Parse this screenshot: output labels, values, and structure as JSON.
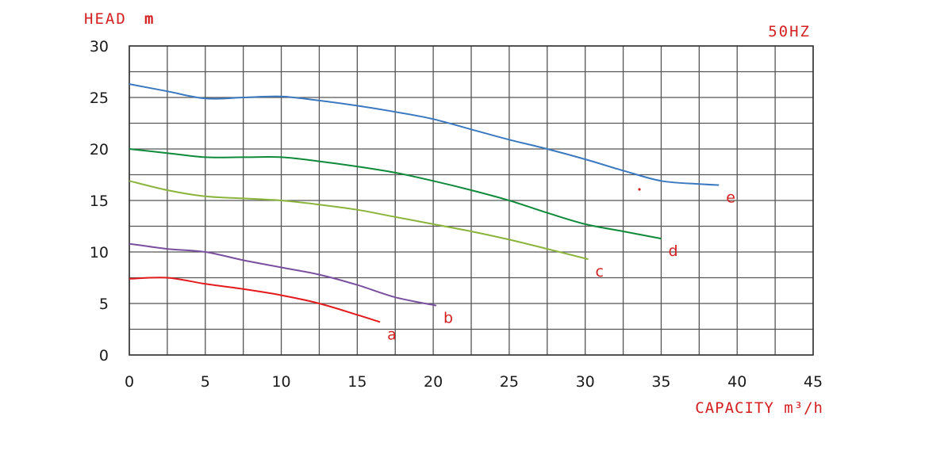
{
  "chart_data": {
    "type": "line",
    "ylabel": "HEAD",
    "ylabel_unit": "m",
    "xlabel": "CAPACITY m³/h",
    "frequency_label": "50HZ",
    "xlim": [
      0,
      45
    ],
    "ylim": [
      0,
      30
    ],
    "x_ticks": [
      "0",
      "5",
      "10",
      "15",
      "20",
      "25",
      "30",
      "35",
      "40",
      "45"
    ],
    "y_ticks": [
      "0",
      "5",
      "10",
      "15",
      "20",
      "25",
      "30"
    ],
    "grid": true,
    "x_grid_step": 2.5,
    "y_grid_step": 2.5,
    "series": [
      {
        "name": "a",
        "color": "#e31a1c",
        "x": [
          0,
          2.5,
          5,
          7.5,
          10,
          12.5,
          15,
          16.5
        ],
        "y": [
          7.4,
          7.5,
          6.9,
          6.4,
          5.8,
          5.0,
          3.9,
          3.2
        ]
      },
      {
        "name": "b",
        "color": "#7a4fa0",
        "x": [
          0,
          2.5,
          5,
          7.5,
          10,
          12.5,
          15,
          17.5,
          20.2
        ],
        "y": [
          10.8,
          10.3,
          10.0,
          9.2,
          8.5,
          7.8,
          6.8,
          5.6,
          4.8
        ]
      },
      {
        "name": "c",
        "color": "#8ab43c",
        "x": [
          0,
          2.5,
          5,
          7.5,
          10,
          12.5,
          15,
          17.5,
          20,
          22.5,
          25,
          27.5,
          30.2
        ],
        "y": [
          16.9,
          16.0,
          15.4,
          15.2,
          15.0,
          14.6,
          14.1,
          13.4,
          12.7,
          12.0,
          11.2,
          10.3,
          9.3
        ]
      },
      {
        "name": "d",
        "color": "#0f8a3a",
        "x": [
          0,
          2.5,
          5,
          7.5,
          10,
          12.5,
          15,
          17.5,
          20,
          22.5,
          25,
          27.5,
          30,
          32.5,
          35
        ],
        "y": [
          20.0,
          19.6,
          19.2,
          19.2,
          19.2,
          18.8,
          18.3,
          17.7,
          16.9,
          16.0,
          15.0,
          13.8,
          12.7,
          12.0,
          11.3
        ]
      },
      {
        "name": "e",
        "color": "#3a78bf",
        "x": [
          0,
          2.5,
          5,
          7.5,
          10,
          12.5,
          15,
          17.5,
          20,
          22.5,
          25,
          27.5,
          30,
          32.5,
          35,
          37.5,
          38.8
        ],
        "y": [
          26.3,
          25.6,
          24.9,
          25.0,
          25.1,
          24.7,
          24.2,
          23.6,
          22.9,
          21.9,
          20.9,
          20.0,
          19.0,
          17.9,
          16.9,
          16.6,
          16.5
        ]
      }
    ]
  }
}
